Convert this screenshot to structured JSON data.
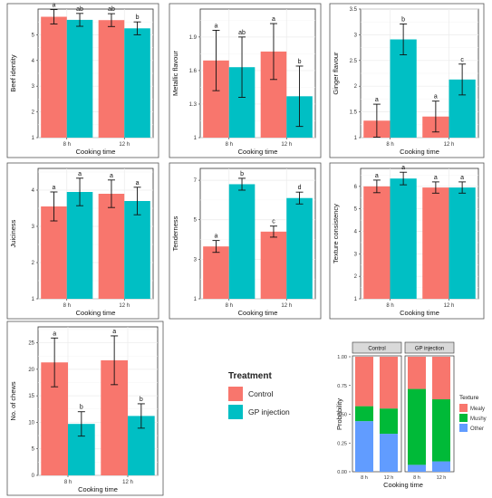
{
  "colors": {
    "control": "#F8766D",
    "gp": "#00BFC4",
    "mealy": "#F8766D",
    "mushy": "#00BA38",
    "other": "#619CFF",
    "strip": "#D9D9D9"
  },
  "legend": {
    "title": "Treatment",
    "items": [
      {
        "label": "Control",
        "color": "#F8766D"
      },
      {
        "label": "GP injection",
        "color": "#00BFC4"
      }
    ]
  },
  "chart_data": [
    {
      "type": "bar",
      "ylabel": "Beef identity",
      "xlabel": "Cooking time",
      "categories": [
        "8 h",
        "12 h"
      ],
      "ylim": [
        1,
        6
      ],
      "yticks": [
        1,
        2,
        3,
        4,
        5
      ],
      "series": [
        {
          "name": "Control",
          "values": [
            5.7,
            5.57
          ],
          "err": [
            0.28,
            0.25
          ],
          "letters": [
            "a",
            "ab"
          ]
        },
        {
          "name": "GP injection",
          "values": [
            5.58,
            5.25
          ],
          "err": [
            0.25,
            0.25
          ],
          "letters": [
            "ab",
            "b"
          ]
        }
      ]
    },
    {
      "type": "bar",
      "ylabel": "Metallic flavour",
      "xlabel": "Cooking time",
      "categories": [
        "8 h",
        "12 h"
      ],
      "ylim": [
        1.0,
        2.15
      ],
      "yticks": [
        1.0,
        1.3,
        1.6,
        1.9
      ],
      "series": [
        {
          "name": "Control",
          "values": [
            1.69,
            1.77
          ],
          "err": [
            0.27,
            0.25
          ],
          "letters": [
            "a",
            "a"
          ]
        },
        {
          "name": "GP injection",
          "values": [
            1.63,
            1.37
          ],
          "err": [
            0.27,
            0.27
          ],
          "letters": [
            "ab",
            "b"
          ]
        }
      ]
    },
    {
      "type": "bar",
      "ylabel": "Ginger flavour",
      "xlabel": "Cooking time",
      "categories": [
        "8 h",
        "12 h"
      ],
      "ylim": [
        1,
        3.5
      ],
      "yticks": [
        1.0,
        1.5,
        2.0,
        2.5,
        3.0,
        3.5
      ],
      "series": [
        {
          "name": "Control",
          "values": [
            1.33,
            1.41
          ],
          "err": [
            0.32,
            0.3
          ],
          "letters": [
            "a",
            "a"
          ]
        },
        {
          "name": "GP injection",
          "values": [
            2.91,
            2.13
          ],
          "err": [
            0.3,
            0.3
          ],
          "letters": [
            "b",
            "c"
          ]
        }
      ]
    },
    {
      "type": "bar",
      "ylabel": "Juiciness",
      "xlabel": "Cooking time",
      "categories": [
        "8 h",
        "12 h"
      ],
      "ylim": [
        1,
        4.6
      ],
      "yticks": [
        1,
        2,
        3,
        4
      ],
      "series": [
        {
          "name": "Control",
          "values": [
            3.55,
            3.9
          ],
          "err": [
            0.4,
            0.38
          ],
          "letters": [
            "a",
            "a"
          ]
        },
        {
          "name": "GP injection",
          "values": [
            3.95,
            3.7
          ],
          "err": [
            0.38,
            0.38
          ],
          "letters": [
            "a",
            "a"
          ]
        }
      ]
    },
    {
      "type": "bar",
      "ylabel": "Tenderness",
      "xlabel": "Cooking time",
      "categories": [
        "8 h",
        "12 h"
      ],
      "ylim": [
        1,
        7.6
      ],
      "yticks": [
        1,
        3,
        5,
        7
      ],
      "series": [
        {
          "name": "Control",
          "values": [
            3.65,
            4.4
          ],
          "err": [
            0.3,
            0.28
          ],
          "letters": [
            "a",
            "c"
          ]
        },
        {
          "name": "GP injection",
          "values": [
            6.8,
            6.1
          ],
          "err": [
            0.3,
            0.3
          ],
          "letters": [
            "b",
            "d"
          ]
        }
      ]
    },
    {
      "type": "bar",
      "ylabel": "Texture consistency",
      "xlabel": "Cooking time",
      "categories": [
        "8 h",
        "12 h"
      ],
      "ylim": [
        1,
        6.8
      ],
      "yticks": [
        1,
        2,
        3,
        4,
        5,
        6
      ],
      "series": [
        {
          "name": "Control",
          "values": [
            6.0,
            5.95
          ],
          "err": [
            0.28,
            0.25
          ],
          "letters": [
            "a",
            "a"
          ]
        },
        {
          "name": "GP injection",
          "values": [
            6.35,
            5.95
          ],
          "err": [
            0.28,
            0.25
          ],
          "letters": [
            "a",
            "a"
          ]
        }
      ]
    },
    {
      "type": "bar",
      "ylabel": "No. of chews",
      "xlabel": "Cooking time",
      "categories": [
        "8 h",
        "12 h"
      ],
      "ylim": [
        0,
        28
      ],
      "yticks": [
        0,
        5,
        10,
        15,
        20,
        25
      ],
      "series": [
        {
          "name": "Control",
          "values": [
            21.3,
            21.7
          ],
          "err": [
            4.6,
            4.6
          ],
          "letters": [
            "a",
            "a"
          ]
        },
        {
          "name": "GP injection",
          "values": [
            9.7,
            11.2
          ],
          "err": [
            2.3,
            2.3
          ],
          "letters": [
            "b",
            "b"
          ]
        }
      ]
    },
    {
      "type": "bar",
      "stacked": true,
      "ylabel": "Probability",
      "xlabel": "Cooking time",
      "ylim": [
        0,
        1
      ],
      "yticks": [
        "0.00",
        "0.25",
        "0.50",
        "0.75",
        "1.00"
      ],
      "legend_title": "Texture",
      "facets": [
        {
          "label": "Control",
          "categories": [
            "8 h",
            "12 h"
          ],
          "stacks": [
            {
              "Other": 0.44,
              "Mushy": 0.13,
              "Mealy": 0.43
            },
            {
              "Other": 0.33,
              "Mushy": 0.22,
              "Mealy": 0.45
            }
          ]
        },
        {
          "label": "GP injection",
          "categories": [
            "8 h",
            "12 h"
          ],
          "stacks": [
            {
              "Other": 0.06,
              "Mushy": 0.66,
              "Mealy": 0.28
            },
            {
              "Other": 0.09,
              "Mushy": 0.54,
              "Mealy": 0.37
            }
          ]
        }
      ],
      "texture_legend": [
        {
          "label": "Mealy",
          "color": "#F8766D"
        },
        {
          "label": "Mushy",
          "color": "#00BA38"
        },
        {
          "label": "Other",
          "color": "#619CFF"
        }
      ]
    }
  ]
}
